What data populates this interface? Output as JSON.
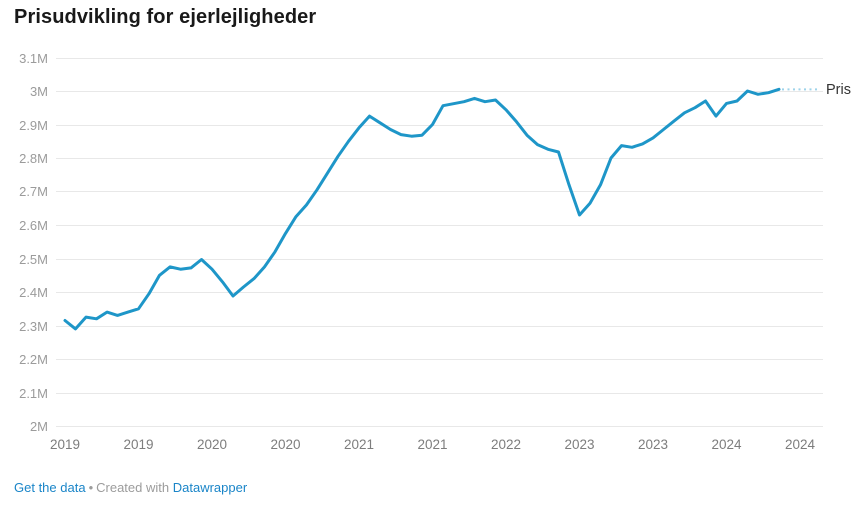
{
  "header": {
    "title": "Prisudvikling for ejerlejligheder"
  },
  "chart_data": {
    "type": "line",
    "title": "Prisudvikling for ejerlejligheder",
    "xlabel": "",
    "ylabel": "",
    "ylim": [
      2.0,
      3.1
    ],
    "grid": "horizontal",
    "legend_position": "end-of-line-label",
    "line_color": "#1E96C8",
    "connector_color": "#9ED3EA",
    "x": [
      "2019-01",
      "2019-02",
      "2019-03",
      "2019-04",
      "2019-05",
      "2019-06",
      "2019-07",
      "2019-08",
      "2019-09",
      "2019-10",
      "2019-11",
      "2019-12",
      "2020-01",
      "2020-02",
      "2020-03",
      "2020-04",
      "2020-05",
      "2020-06",
      "2020-07",
      "2020-08",
      "2020-09",
      "2020-10",
      "2020-11",
      "2020-12",
      "2021-01",
      "2021-02",
      "2021-03",
      "2021-04",
      "2021-05",
      "2021-06",
      "2021-07",
      "2021-08",
      "2021-09",
      "2021-10",
      "2021-11",
      "2021-12",
      "2022-01",
      "2022-02",
      "2022-03",
      "2022-04",
      "2022-05",
      "2022-06",
      "2022-07",
      "2022-08",
      "2022-09",
      "2022-10",
      "2022-11",
      "2022-12",
      "2023-01",
      "2023-02",
      "2023-03",
      "2023-04",
      "2023-05",
      "2023-06",
      "2023-07",
      "2023-08",
      "2023-09",
      "2023-10",
      "2023-11",
      "2023-12",
      "2024-01",
      "2024-02",
      "2024-03",
      "2024-04",
      "2024-05",
      "2024-06",
      "2024-07",
      "2024-08",
      "2024-09"
    ],
    "series": [
      {
        "name": "Pris",
        "values": [
          2.315,
          2.29,
          2.325,
          2.32,
          2.34,
          2.33,
          2.34,
          2.35,
          2.395,
          2.45,
          2.475,
          2.468,
          2.472,
          2.497,
          2.468,
          2.43,
          2.388,
          2.415,
          2.44,
          2.475,
          2.52,
          2.575,
          2.625,
          2.66,
          2.705,
          2.755,
          2.805,
          2.85,
          2.89,
          2.925,
          2.905,
          2.885,
          2.87,
          2.865,
          2.868,
          2.9,
          2.956,
          2.962,
          2.968,
          2.978,
          2.968,
          2.973,
          2.944,
          2.908,
          2.868,
          2.84,
          2.826,
          2.818,
          2.72,
          2.63,
          2.665,
          2.72,
          2.8,
          2.837,
          2.832,
          2.842,
          2.86,
          2.885,
          2.91,
          2.935,
          2.95,
          2.97,
          2.925,
          2.963,
          2.97,
          3.0,
          2.99,
          2.995,
          3.005
        ]
      }
    ],
    "y_ticks": [
      {
        "value": 2.0,
        "label": "2M"
      },
      {
        "value": 2.1,
        "label": "2.1M"
      },
      {
        "value": 2.2,
        "label": "2.2M"
      },
      {
        "value": 2.3,
        "label": "2.3M"
      },
      {
        "value": 2.4,
        "label": "2.4M"
      },
      {
        "value": 2.5,
        "label": "2.5M"
      },
      {
        "value": 2.6,
        "label": "2.6M"
      },
      {
        "value": 2.7,
        "label": "2.7M"
      },
      {
        "value": 2.8,
        "label": "2.8M"
      },
      {
        "value": 2.9,
        "label": "2.9M"
      },
      {
        "value": 3.0,
        "label": "3M"
      },
      {
        "value": 3.1,
        "label": "3.1M"
      }
    ],
    "x_ticks": [
      {
        "month_index": 0,
        "label": "2019"
      },
      {
        "month_index": 7,
        "label": "2019"
      },
      {
        "month_index": 14,
        "label": "2020"
      },
      {
        "month_index": 21,
        "label": "2020"
      },
      {
        "month_index": 28,
        "label": "2021"
      },
      {
        "month_index": 35,
        "label": "2021"
      },
      {
        "month_index": 42,
        "label": "2022"
      },
      {
        "month_index": 49,
        "label": "2023"
      },
      {
        "month_index": 56,
        "label": "2023"
      },
      {
        "month_index": 63,
        "label": "2024"
      },
      {
        "month_index": 70,
        "label": "2024"
      }
    ],
    "end_label": "Pris"
  },
  "footer": {
    "get_data_label": "Get the data",
    "separator": "•",
    "created_with": "Created with",
    "datawrapper_label": "Datawrapper",
    "link_color": "#1A85C8"
  }
}
